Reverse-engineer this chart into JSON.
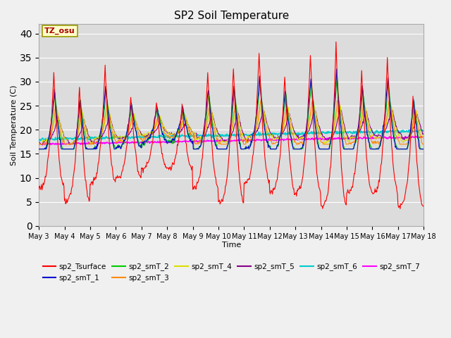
{
  "title": "SP2 Soil Temperature",
  "xlabel": "Time",
  "ylabel": "Soil Temperature (C)",
  "ylim": [
    0,
    42
  ],
  "yticks": [
    0,
    5,
    10,
    15,
    20,
    25,
    30,
    35,
    40
  ],
  "x_labels": [
    "May 3",
    "May 4",
    "May 5",
    "May 6",
    "May 7",
    "May 8",
    "May 9",
    "May 10",
    "May 11",
    "May 12",
    "May 13",
    "May 14",
    "May 15",
    "May 16",
    "May 17",
    "May 18"
  ],
  "tz_label": "TZ_osu",
  "series_colors": {
    "sp2_Tsurface": "#ff0000",
    "sp2_smT_1": "#0000cc",
    "sp2_smT_2": "#00cc00",
    "sp2_smT_3": "#ff8800",
    "sp2_smT_4": "#dddd00",
    "sp2_smT_5": "#880088",
    "sp2_smT_6": "#00cccc",
    "sp2_smT_7": "#ff00ff"
  },
  "fig_bg": "#f0f0f0",
  "plot_bg": "#dcdcdc"
}
